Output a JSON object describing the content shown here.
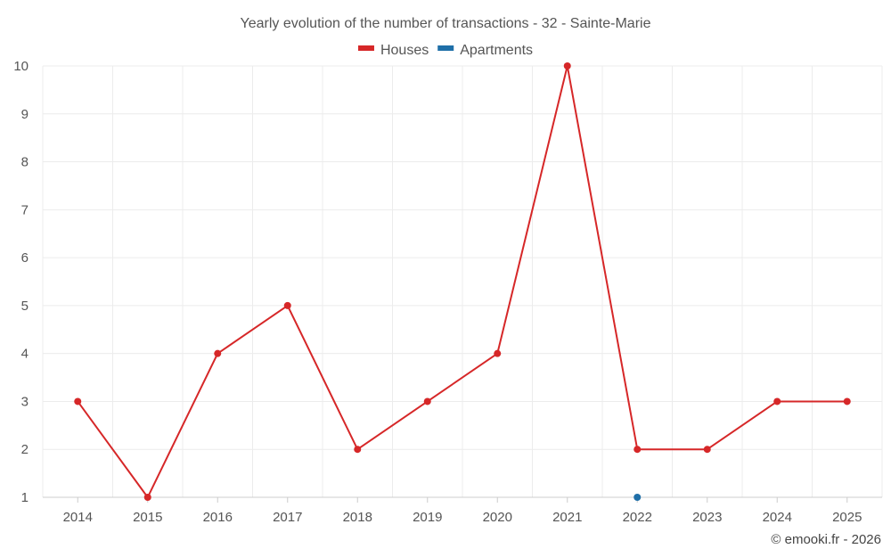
{
  "chart_data": {
    "type": "line",
    "title": "Yearly evolution of the number of transactions - 32 - Sainte-Marie",
    "categories": [
      "2014",
      "2015",
      "2016",
      "2017",
      "2018",
      "2019",
      "2020",
      "2021",
      "2022",
      "2023",
      "2024",
      "2025"
    ],
    "series": [
      {
        "name": "Houses",
        "color": "#d62728",
        "values": [
          3,
          1,
          4,
          5,
          2,
          3,
          4,
          10,
          2,
          2,
          3,
          3
        ]
      },
      {
        "name": "Apartments",
        "color": "#1f6fa8",
        "values": [
          null,
          null,
          null,
          null,
          null,
          null,
          null,
          null,
          1,
          null,
          null,
          null
        ]
      }
    ],
    "ylim": [
      1,
      10
    ],
    "yticks": [
      1,
      2,
      3,
      4,
      5,
      6,
      7,
      8,
      9,
      10
    ],
    "grid": true,
    "legend_position": "top-center"
  },
  "credit": "© emooki.fr - 2026"
}
